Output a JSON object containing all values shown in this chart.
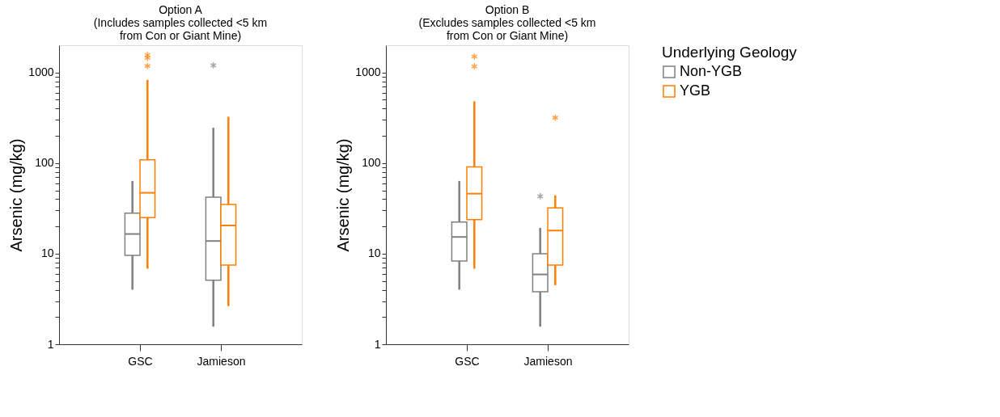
{
  "chart_data": [
    {
      "type": "box",
      "title": [
        "Option A",
        "(Includes  samples collected <5 km",
        "from Con or Giant Mine)"
      ],
      "ylabel": "Arsenic  (mg/kg)",
      "categories": [
        "GSC",
        "Jamieson"
      ],
      "log": true,
      "ylim": [
        1,
        2000
      ],
      "legend": "right",
      "yticks": [
        1,
        {
          "value": 2,
          "label": null
        },
        {
          "value": 3,
          "label": null
        },
        {
          "value": 4,
          "label": null
        },
        {
          "value": 5,
          "label": null
        },
        {
          "value": 6,
          "label": null
        },
        {
          "value": 7,
          "label": null
        },
        {
          "value": 8,
          "label": null
        },
        {
          "value": 9,
          "label": null
        },
        10,
        {
          "value": 20,
          "label": null
        },
        {
          "value": 30,
          "label": null
        },
        {
          "value": 40,
          "label": null
        },
        {
          "value": 50,
          "label": null
        },
        {
          "value": 60,
          "label": null
        },
        {
          "value": 70,
          "label": null
        },
        {
          "value": 80,
          "label": null
        },
        {
          "value": 90,
          "label": null
        },
        100,
        {
          "value": 200,
          "label": null
        },
        {
          "value": 300,
          "label": null
        },
        {
          "value": 400,
          "label": null
        },
        {
          "value": 500,
          "label": null
        },
        {
          "value": 600,
          "label": null
        },
        {
          "value": 700,
          "label": null
        },
        {
          "value": 800,
          "label": null
        },
        {
          "value": 900,
          "label": null
        },
        1000
      ],
      "series": [
        {
          "name": "Non-YGB",
          "color": "#808080",
          "boxes": [
            {
              "low": 4.1,
              "q1": 9.6,
              "median": 16.5,
              "q3": 28,
              "high": 62
            },
            {
              "low": 1.6,
              "q1": 5.1,
              "median": 13.8,
              "q3": 42,
              "high": 240,
              "outliers": [
                1200
              ]
            }
          ]
        },
        {
          "name": "YGB",
          "color": "#ff7f00",
          "boxes": [
            {
              "low": 7,
              "q1": 25,
              "median": 47,
              "q3": 109,
              "high": 810,
              "outliers": [
                1180,
                1450,
                1560
              ]
            },
            {
              "low": 2.7,
              "q1": 7.5,
              "median": 20.5,
              "q3": 35,
              "high": 317
            }
          ]
        }
      ]
    },
    {
      "type": "box",
      "title": [
        "Option B",
        "(Excludes samples collected <5 km",
        "from Con or Giant Mine)"
      ],
      "ylabel": "Arsenic  (mg/kg)",
      "categories": [
        "GSC",
        "Jamieson"
      ],
      "log": true,
      "ylim": [
        1,
        2000
      ],
      "legend": "right",
      "legend_title": "Underlying  Geology",
      "yticks": [
        1,
        {
          "value": 2,
          "label": null
        },
        {
          "value": 3,
          "label": null
        },
        {
          "value": 4,
          "label": null
        },
        {
          "value": 5,
          "label": null
        },
        {
          "value": 6,
          "label": null
        },
        {
          "value": 7,
          "label": null
        },
        {
          "value": 8,
          "label": null
        },
        {
          "value": 9,
          "label": null
        },
        10,
        {
          "value": 20,
          "label": null
        },
        {
          "value": 30,
          "label": null
        },
        {
          "value": 40,
          "label": null
        },
        {
          "value": 50,
          "label": null
        },
        {
          "value": 60,
          "label": null
        },
        {
          "value": 70,
          "label": null
        },
        {
          "value": 80,
          "label": null
        },
        {
          "value": 90,
          "label": null
        },
        100,
        {
          "value": 200,
          "label": null
        },
        {
          "value": 300,
          "label": null
        },
        {
          "value": 400,
          "label": null
        },
        {
          "value": 500,
          "label": null
        },
        {
          "value": 600,
          "label": null
        },
        {
          "value": 700,
          "label": null
        },
        {
          "value": 800,
          "label": null
        },
        {
          "value": 900,
          "label": null
        },
        1000
      ],
      "series": [
        {
          "name": "Non-YGB",
          "color": "#808080",
          "boxes": [
            {
              "low": 4.1,
              "q1": 8.3,
              "median": 15.3,
              "q3": 22.3,
              "high": 62
            },
            {
              "low": 1.6,
              "q1": 3.8,
              "median": 5.9,
              "q3": 10,
              "high": 18.8,
              "outliers": [
                43
              ]
            }
          ]
        },
        {
          "name": "YGB",
          "color": "#ff7f00",
          "boxes": [
            {
              "low": 7,
              "q1": 23.8,
              "median": 46,
              "q3": 91,
              "high": 470,
              "outliers": [
                1170,
                1500
              ]
            },
            {
              "low": 4.6,
              "q1": 7.5,
              "median": 18,
              "q3": 32,
              "high": 43,
              "outliers": [
                317
              ]
            }
          ]
        }
      ]
    }
  ]
}
